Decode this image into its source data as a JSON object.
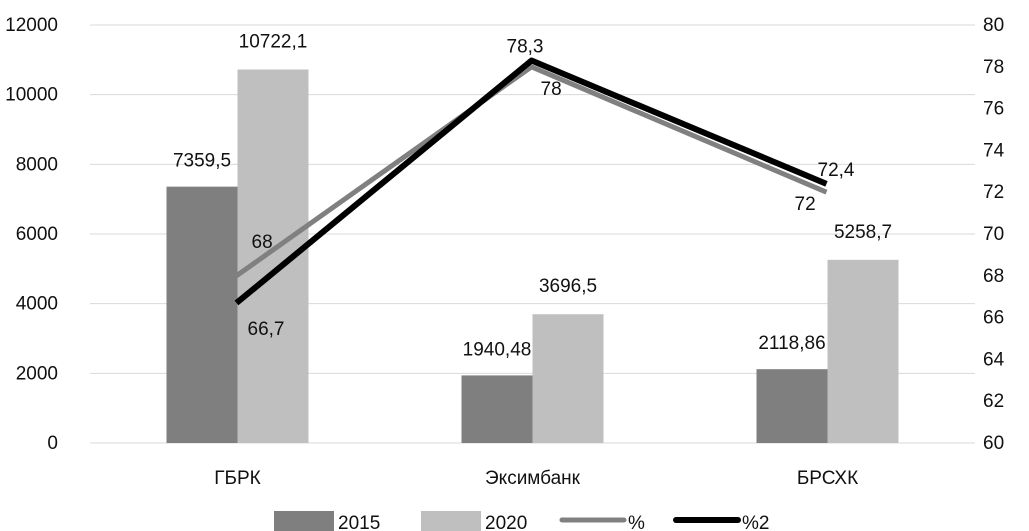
{
  "chart_data": {
    "type": "bar",
    "categories": [
      "ГБРК",
      "Эксимбанк",
      "БРСХК"
    ],
    "series": [
      {
        "name": "2015",
        "kind": "bar",
        "axis": "left",
        "color": "#7f7f7f",
        "values": [
          7359.5,
          1940.48,
          2118.86
        ],
        "labels": [
          "7359,5",
          "1940,48",
          "2118,86"
        ]
      },
      {
        "name": "2020",
        "kind": "bar",
        "axis": "left",
        "color": "#bfbfbf",
        "values": [
          10722.1,
          3696.5,
          5258.7
        ],
        "labels": [
          "10722,1",
          "3696,5",
          "5258,7"
        ]
      },
      {
        "name": "%",
        "kind": "line",
        "axis": "right",
        "color": "#808080",
        "values": [
          68,
          78,
          72
        ],
        "labels": [
          "68",
          "78",
          "72"
        ]
      },
      {
        "name": "%2",
        "kind": "line",
        "axis": "right",
        "color": "#000000",
        "values": [
          66.7,
          78.3,
          72.4
        ],
        "labels": [
          "66,7",
          "78,3",
          "72,4"
        ]
      }
    ],
    "y_left": {
      "min": 0,
      "max": 12000,
      "ticks": [
        "0",
        "2000",
        "4000",
        "6000",
        "8000",
        "10000",
        "12000"
      ]
    },
    "y_right": {
      "min": 60,
      "max": 80,
      "ticks": [
        "60",
        "62",
        "64",
        "66",
        "68",
        "70",
        "72",
        "74",
        "76",
        "78",
        "80"
      ]
    },
    "grid": true,
    "legend": "bottom"
  }
}
